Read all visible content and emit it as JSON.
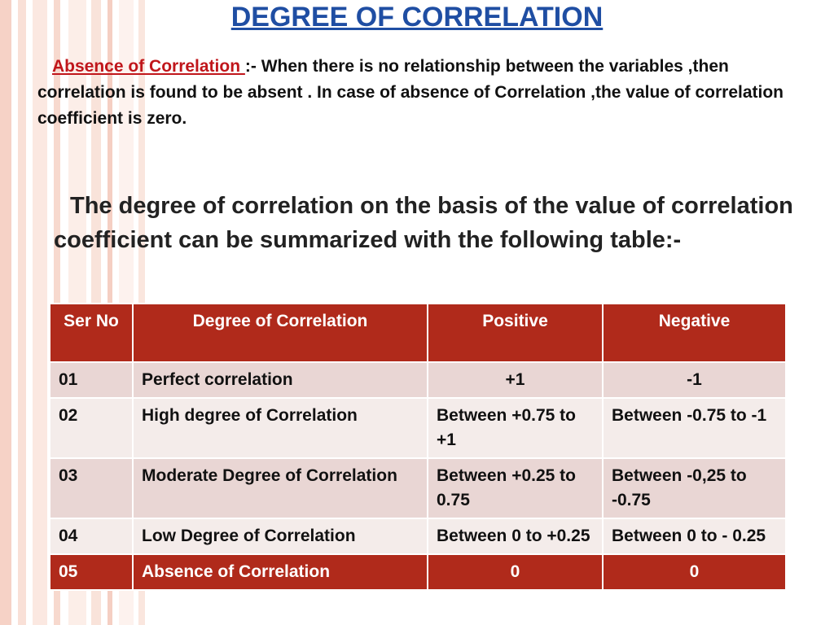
{
  "colors": {
    "title": "#1f4ea3",
    "label_red": "#c0161b",
    "header_bg": "#b02a1b",
    "row_odd": "#e9d6d4",
    "row_even": "#f4ecea"
  },
  "title": "DEGREE OF CORRELATION",
  "absence": {
    "label": "Absence of  Correlation ",
    "text": ":- When there is no relationship between the variables ,then correlation is found to be absent . In case of absence of Correlation ,the value of correlation coefficient is zero."
  },
  "summary": "The degree of correlation on the basis of the value of correlation coefficient can be summarized with the following table:-",
  "table": {
    "headers": [
      "Ser No",
      "Degree of Correlation",
      "Positive",
      "Negative"
    ],
    "rows": [
      {
        "ser": "01",
        "degree": "Perfect correlation",
        "positive": "+1",
        "negative": "-1"
      },
      {
        "ser": "02",
        "degree": "High degree of Correlation",
        "positive": "Between +0.75 to +1",
        "negative": "Between -0.75 to -1"
      },
      {
        "ser": "03",
        "degree": "Moderate Degree of Correlation",
        "positive": "Between +0.25 to 0.75",
        "negative": "Between -0,25 to -0.75"
      },
      {
        "ser": "04",
        "degree": "Low Degree of Correlation",
        "positive": "Between 0 to +0.25",
        "negative": "Between 0 to - 0.25"
      },
      {
        "ser": "05",
        "degree": "Absence of Correlation",
        "positive": "0",
        "negative": "0"
      }
    ]
  }
}
